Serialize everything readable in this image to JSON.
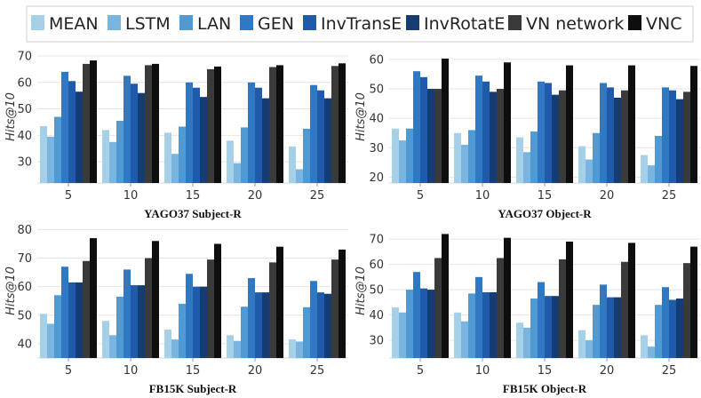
{
  "legend": [
    {
      "name": "MEAN",
      "color": "#a6cfe8"
    },
    {
      "name": "LSTM",
      "color": "#79b5df"
    },
    {
      "name": "LAN",
      "color": "#4f9ad2"
    },
    {
      "name": "GEN",
      "color": "#3079c2"
    },
    {
      "name": "InvTransE",
      "color": "#1f5ba8"
    },
    {
      "name": "InvRotatE",
      "color": "#163c74"
    },
    {
      "name": "VN network",
      "color": "#3a3a3a"
    },
    {
      "name": "VNC",
      "color": "#0e0e0e"
    }
  ],
  "chart_data": [
    {
      "type": "bar",
      "title": "YAGO37 Subject-R",
      "ylabel": "Hits@10",
      "categories": [
        "5",
        "10",
        "15",
        "20",
        "25"
      ],
      "ylim": [
        22,
        72
      ],
      "yticks": [
        30,
        40,
        50,
        60,
        70
      ],
      "series": [
        {
          "name": "MEAN",
          "values": [
            43.5,
            42.0,
            41.0,
            38.0,
            35.8
          ]
        },
        {
          "name": "LSTM",
          "values": [
            39.5,
            37.5,
            33.0,
            29.5,
            27.2
          ]
        },
        {
          "name": "LAN",
          "values": [
            47.0,
            45.5,
            43.3,
            43.0,
            42.5
          ]
        },
        {
          "name": "GEN",
          "values": [
            64.0,
            62.5,
            60.0,
            60.0,
            59.0
          ]
        },
        {
          "name": "InvTransE",
          "values": [
            60.5,
            59.5,
            58.0,
            58.0,
            57.0
          ]
        },
        {
          "name": "InvRotatE",
          "values": [
            56.5,
            56.0,
            54.5,
            54.0,
            54.0
          ]
        },
        {
          "name": "VN network",
          "values": [
            67.0,
            66.5,
            65.0,
            65.8,
            66.2
          ]
        },
        {
          "name": "VNC",
          "values": [
            68.3,
            67.0,
            66.0,
            66.5,
            67.2
          ]
        }
      ]
    },
    {
      "type": "bar",
      "title": "YAGO37 Object-R",
      "ylabel": "Hits@10",
      "categories": [
        "5",
        "10",
        "15",
        "20",
        "25"
      ],
      "ylim": [
        18,
        63
      ],
      "yticks": [
        20,
        30,
        40,
        50,
        60
      ],
      "series": [
        {
          "name": "MEAN",
          "values": [
            36.5,
            35.0,
            33.5,
            30.5,
            27.5
          ]
        },
        {
          "name": "LSTM",
          "values": [
            32.5,
            31.0,
            28.5,
            26.0,
            24.0
          ]
        },
        {
          "name": "LAN",
          "values": [
            36.5,
            36.0,
            35.5,
            35.0,
            34.0
          ]
        },
        {
          "name": "GEN",
          "values": [
            56.0,
            54.5,
            52.5,
            52.0,
            50.5
          ]
        },
        {
          "name": "InvTransE",
          "values": [
            54.0,
            52.5,
            52.0,
            50.5,
            49.5
          ]
        },
        {
          "name": "InvRotatE",
          "values": [
            50.0,
            49.0,
            48.0,
            47.0,
            46.5
          ]
        },
        {
          "name": "VN network",
          "values": [
            50.0,
            50.0,
            49.5,
            49.5,
            49.0
          ]
        },
        {
          "name": "VNC",
          "values": [
            60.3,
            59.0,
            58.0,
            58.0,
            57.8
          ]
        }
      ]
    },
    {
      "type": "bar",
      "title": "FB15K Subject-R",
      "ylabel": "Hits@10",
      "categories": [
        "5",
        "10",
        "15",
        "20",
        "25"
      ],
      "ylim": [
        35,
        82
      ],
      "yticks": [
        40,
        50,
        60,
        70,
        80
      ],
      "series": [
        {
          "name": "MEAN",
          "values": [
            50.5,
            48.0,
            45.0,
            43.0,
            41.5
          ]
        },
        {
          "name": "LSTM",
          "values": [
            47.0,
            43.0,
            41.5,
            41.0,
            40.8
          ]
        },
        {
          "name": "LAN",
          "values": [
            57.0,
            56.5,
            54.0,
            53.0,
            52.8
          ]
        },
        {
          "name": "GEN",
          "values": [
            67.0,
            66.0,
            64.5,
            63.0,
            62.0
          ]
        },
        {
          "name": "InvTransE",
          "values": [
            61.5,
            60.5,
            60.0,
            58.0,
            58.0
          ]
        },
        {
          "name": "InvRotatE",
          "values": [
            61.5,
            60.5,
            60.0,
            58.0,
            57.5
          ]
        },
        {
          "name": "VN network",
          "values": [
            69.0,
            70.0,
            69.5,
            68.5,
            69.5
          ]
        },
        {
          "name": "VNC",
          "values": [
            77.0,
            76.0,
            75.0,
            74.0,
            73.0
          ]
        }
      ]
    },
    {
      "type": "bar",
      "title": "FB15K Object-R",
      "ylabel": "Hits@10",
      "categories": [
        "5",
        "10",
        "15",
        "20",
        "25"
      ],
      "ylim": [
        23,
        76
      ],
      "yticks": [
        30,
        40,
        50,
        60,
        70
      ],
      "series": [
        {
          "name": "MEAN",
          "values": [
            43.0,
            41.0,
            37.0,
            34.0,
            32.0
          ]
        },
        {
          "name": "LSTM",
          "values": [
            41.0,
            37.5,
            35.0,
            30.0,
            27.5
          ]
        },
        {
          "name": "LAN",
          "values": [
            50.0,
            48.5,
            46.5,
            44.0,
            44.0
          ]
        },
        {
          "name": "GEN",
          "values": [
            57.0,
            55.0,
            53.0,
            52.0,
            51.0
          ]
        },
        {
          "name": "InvTransE",
          "values": [
            50.5,
            49.0,
            47.5,
            47.0,
            46.0
          ]
        },
        {
          "name": "InvRotatE",
          "values": [
            50.0,
            49.0,
            47.5,
            47.0,
            46.5
          ]
        },
        {
          "name": "VN network",
          "values": [
            62.5,
            62.5,
            62.0,
            61.0,
            60.5
          ]
        },
        {
          "name": "VNC",
          "values": [
            72.0,
            70.5,
            69.0,
            68.5,
            67.0
          ]
        }
      ]
    }
  ]
}
